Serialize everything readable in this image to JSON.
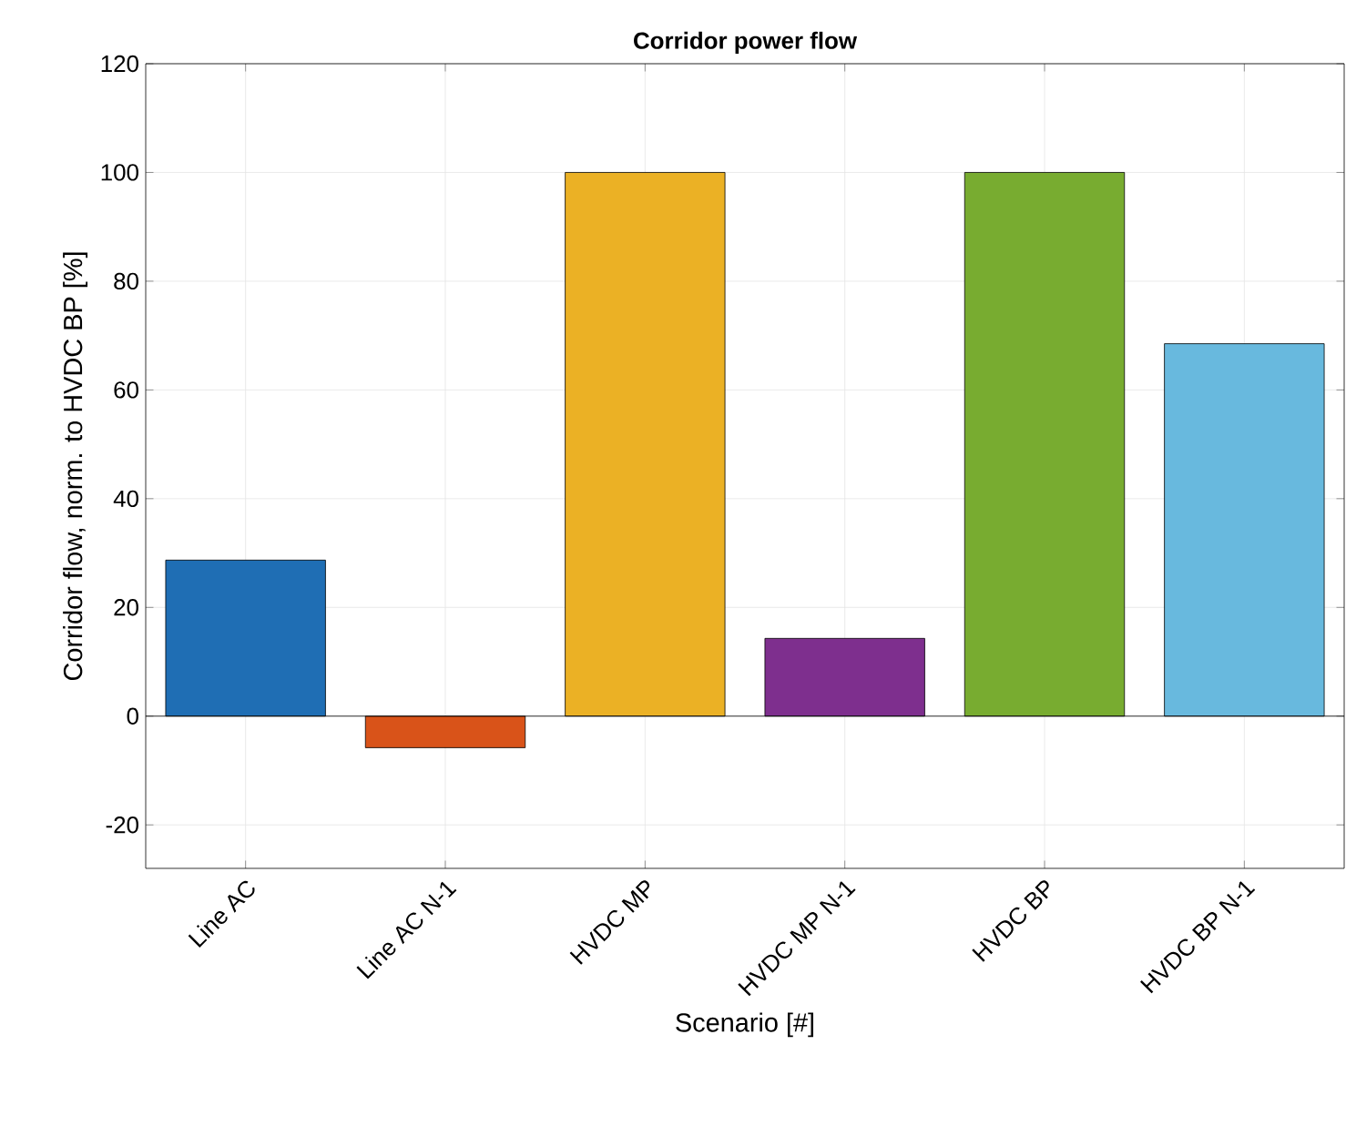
{
  "chart_data": {
    "type": "bar",
    "title": "Corridor power flow",
    "xlabel": "Scenario [#]",
    "ylabel": "Corridor flow, norm. to HVDC BP [%]",
    "categories": [
      "Line AC",
      "Line AC N-1",
      "HVDC MP",
      "HVDC MP N-1",
      "HVDC BP",
      "HVDC BP N-1"
    ],
    "values": [
      28.7,
      -5.8,
      100,
      14.3,
      100,
      68.5
    ],
    "colors": [
      "#1f6eb4",
      "#d95319",
      "#ebb125",
      "#7e2f8e",
      "#78ac30",
      "#68b9de"
    ],
    "ylim": [
      -28,
      120
    ],
    "yticks": [
      -20,
      0,
      20,
      40,
      60,
      80,
      100,
      120
    ],
    "grid": true,
    "ref_lines": [
      {
        "axis": "y",
        "value": 0,
        "color": "#000000"
      }
    ]
  }
}
